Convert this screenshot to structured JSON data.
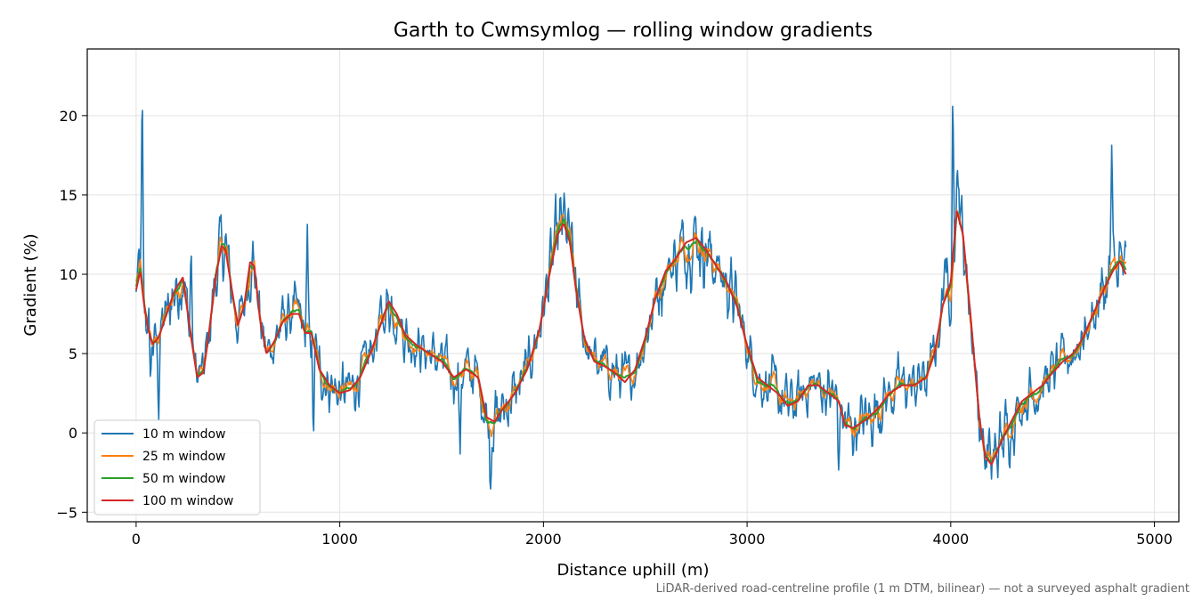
{
  "chart_data": {
    "type": "line",
    "title": "Garth to Cwmsymlog — rolling window gradients",
    "xlabel": "Distance uphill (m)",
    "ylabel": "Gradient (%)",
    "xlim": [
      -240,
      5120
    ],
    "ylim": [
      -5.6,
      24.2
    ],
    "xticks": [
      0,
      1000,
      2000,
      3000,
      4000,
      5000
    ],
    "xtick_labels": [
      "0",
      "1000",
      "2000",
      "3000",
      "4000",
      "5000"
    ],
    "yticks": [
      -5,
      0,
      5,
      10,
      15,
      20
    ],
    "ytick_labels": [
      "−5",
      "0",
      "5",
      "10",
      "15",
      "20"
    ],
    "grid": true,
    "legend_position": "lower-left",
    "footnote": "LiDAR-derived road-centreline profile (1 m DTM, bilinear) — not a surveyed asphalt gradient",
    "series": [
      {
        "name": "10 m window",
        "color": "#1f77b4"
      },
      {
        "name": "25 m window",
        "color": "#ff7f0e"
      },
      {
        "name": "50 m window",
        "color": "#2ca02c"
      },
      {
        "name": "100 m window",
        "color": "#d62728"
      }
    ],
    "trend_x": [
      0,
      20,
      40,
      60,
      80,
      110,
      150,
      190,
      230,
      270,
      300,
      330,
      360,
      390,
      420,
      440,
      470,
      500,
      530,
      560,
      580,
      610,
      640,
      680,
      720,
      760,
      800,
      830,
      860,
      900,
      950,
      1000,
      1050,
      1100,
      1150,
      1200,
      1240,
      1280,
      1320,
      1380,
      1440,
      1500,
      1560,
      1620,
      1680,
      1720,
      1760,
      1800,
      1860,
      1920,
      1980,
      2030,
      2070,
      2100,
      2130,
      2160,
      2200,
      2250,
      2300,
      2350,
      2400,
      2450,
      2500,
      2550,
      2600,
      2650,
      2700,
      2750,
      2800,
      2850,
      2900,
      2950,
      3000,
      3050,
      3100,
      3150,
      3200,
      3250,
      3300,
      3350,
      3400,
      3450,
      3480,
      3520,
      3580,
      3640,
      3700,
      3760,
      3820,
      3880,
      3920,
      3960,
      4000,
      4030,
      4060,
      4100,
      4140,
      4170,
      4200,
      4250,
      4300,
      4350,
      4400,
      4450,
      4500,
      4550,
      4600,
      4650,
      4700,
      4750,
      4800,
      4830,
      4860
    ],
    "trend_y": [
      9.0,
      10.2,
      8.0,
      6.5,
      5.6,
      6.0,
      7.5,
      9.0,
      9.8,
      6.0,
      3.5,
      3.8,
      6.5,
      9.8,
      11.8,
      11.5,
      9.0,
      6.8,
      8.0,
      10.8,
      10.5,
      7.0,
      5.0,
      5.8,
      7.0,
      7.5,
      7.5,
      6.3,
      6.3,
      4.0,
      3.0,
      2.5,
      2.7,
      3.5,
      5.0,
      6.8,
      8.3,
      7.5,
      6.2,
      5.5,
      5.0,
      4.5,
      3.5,
      4.0,
      3.5,
      1.0,
      0.7,
      1.5,
      2.5,
      4.0,
      6.5,
      10.0,
      12.5,
      13.2,
      12.0,
      9.0,
      6.0,
      4.5,
      4.2,
      3.8,
      3.2,
      4.0,
      6.0,
      8.5,
      10.2,
      11.0,
      12.0,
      12.3,
      11.5,
      10.5,
      9.5,
      8.0,
      5.5,
      3.5,
      3.0,
      2.5,
      1.7,
      2.0,
      3.0,
      3.0,
      2.5,
      2.0,
      0.5,
      0.3,
      0.8,
      1.5,
      2.5,
      3.0,
      3.0,
      3.5,
      5.0,
      8.0,
      9.5,
      14.0,
      12.5,
      7.0,
      1.0,
      -1.5,
      -2.0,
      -0.5,
      0.8,
      2.0,
      2.5,
      3.0,
      3.8,
      4.5,
      5.0,
      6.0,
      7.5,
      9.0,
      10.3,
      10.8,
      10.0,
      9.0
    ],
    "spikes_10m": [
      [
        30,
        20.8
      ],
      [
        70,
        3.5
      ],
      [
        110,
        1.5
      ],
      [
        270,
        12.0
      ],
      [
        840,
        12.0
      ],
      [
        870,
        -1.3
      ],
      [
        1590,
        -2.2
      ],
      [
        1740,
        -2.7
      ],
      [
        3450,
        -2.5
      ],
      [
        3970,
        12.5
      ],
      [
        4010,
        22.8
      ],
      [
        4040,
        17.0
      ],
      [
        4790,
        17.8
      ]
    ]
  }
}
